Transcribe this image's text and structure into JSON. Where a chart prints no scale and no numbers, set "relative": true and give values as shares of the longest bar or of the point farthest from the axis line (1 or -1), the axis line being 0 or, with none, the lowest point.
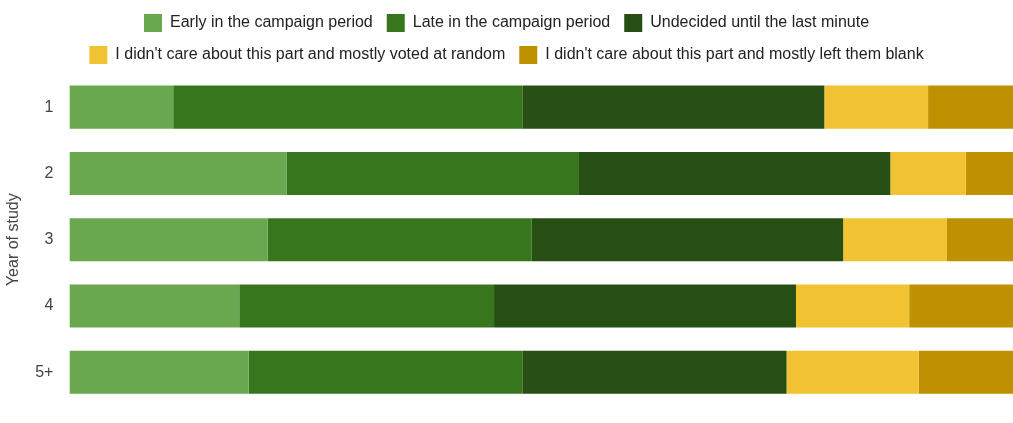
{
  "chart_data": {
    "type": "bar",
    "orientation": "horizontal",
    "stacked": true,
    "relative": true,
    "legend": "top",
    "ylabel": "Year of study",
    "categories": [
      "1",
      "2",
      "3",
      "4",
      "5+"
    ],
    "series": [
      {
        "name": "Early in the campaign period",
        "color": "#6aa84f",
        "values": [
          0.11,
          0.23,
          0.21,
          0.18,
          0.19
        ]
      },
      {
        "name": "Late in the campaign period",
        "color": "#38761d",
        "values": [
          0.37,
          0.31,
          0.28,
          0.27,
          0.29
        ]
      },
      {
        "name": "Undecided until the last minute",
        "color": "#274e13",
        "values": [
          0.32,
          0.33,
          0.33,
          0.32,
          0.28
        ]
      },
      {
        "name": "I didn't care about this part and mostly voted at random",
        "color": "#f1c232",
        "values": [
          0.11,
          0.08,
          0.11,
          0.12,
          0.14
        ]
      },
      {
        "name": "I didn't care about this part and mostly left them blank",
        "color": "#bf9000",
        "values": [
          0.09,
          0.05,
          0.07,
          0.11,
          0.1
        ]
      }
    ]
  }
}
